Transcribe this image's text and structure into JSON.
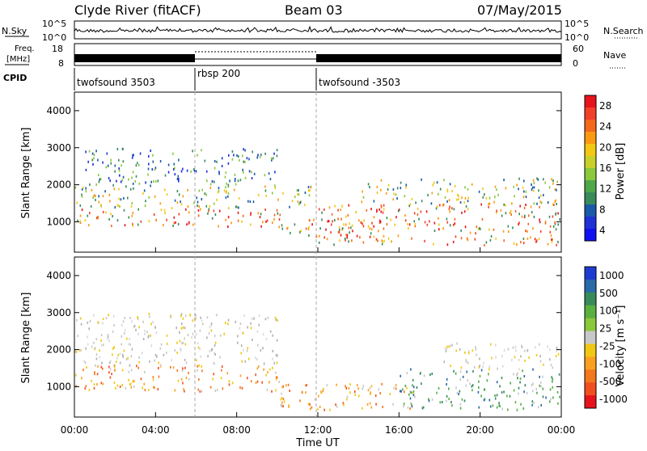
{
  "header": {
    "station": "Clyde River (fitACF)",
    "beam": "Beam 03",
    "date": "07/May/2015"
  },
  "strip_labels": {
    "nsky": "N.Sky",
    "nsky_ticks": [
      "10^5",
      "10^0"
    ],
    "nsearch": "N.Search",
    "freq": "Freq.",
    "freq_unit": "[MHz]",
    "freq_ticks": [
      "18",
      "8"
    ],
    "nave": "Nave",
    "nave_ticks": [
      "60",
      "0"
    ],
    "cpid": "CPID"
  },
  "cpid_segments": [
    {
      "label": "twofsound 3503",
      "start_hour": 0
    },
    {
      "label": "rbsp 200",
      "start_hour": 6
    },
    {
      "label": "twofsound -3503",
      "start_hour": 12
    }
  ],
  "chart_data": [
    {
      "type": "heatmap",
      "quantity": "Power",
      "ylabel": "Slant Range [km]",
      "xlabel": "",
      "xlim": [
        0,
        24
      ],
      "ylim": [
        180,
        4500
      ],
      "y_ticks": [
        1000,
        2000,
        3000,
        4000
      ],
      "x_ticks": [
        "00:00",
        "04:00",
        "08:00",
        "12:00",
        "16:00",
        "20:00",
        "00:00"
      ],
      "colorbar": {
        "label": "Power [dB]",
        "ticks": [
          "28",
          "24",
          "20",
          "16",
          "12",
          "8",
          "4"
        ],
        "colors": [
          "#e8141c",
          "#f2402a",
          "#f4691e",
          "#fb9a12",
          "#f2c814",
          "#c8d02a",
          "#8ac83c",
          "#4ea84a",
          "#3a8a5c",
          "#1a5aa8",
          "#1e32d6",
          "#1010f0"
        ]
      },
      "regions": [
        {
          "t_start": 0.0,
          "t_end": 10.3,
          "r_min": 900,
          "r_max": 1400,
          "level": "high"
        },
        {
          "t_start": 0.0,
          "t_end": 12.0,
          "r_min": 1400,
          "r_max": 2000,
          "level": "mid"
        },
        {
          "t_start": 0.5,
          "t_end": 10.0,
          "r_min": 2000,
          "r_max": 3000,
          "level": "low"
        },
        {
          "t_start": 10.0,
          "t_end": 15.5,
          "r_min": 600,
          "r_max": 1100,
          "level": "high"
        },
        {
          "t_start": 12.0,
          "t_end": 24.0,
          "r_min": 400,
          "r_max": 1500,
          "level": "high"
        },
        {
          "t_start": 14.0,
          "t_end": 24.0,
          "r_min": 1500,
          "r_max": 2200,
          "level": "mid"
        }
      ]
    },
    {
      "type": "heatmap",
      "quantity": "Velocity",
      "ylabel": "Slant Range [km]",
      "xlabel": "Time UT",
      "xlim": [
        0,
        24
      ],
      "ylim": [
        180,
        4500
      ],
      "y_ticks": [
        1000,
        2000,
        3000,
        4000
      ],
      "x_ticks": [
        "00:00",
        "04:00",
        "08:00",
        "12:00",
        "16:00",
        "20:00",
        "00:00"
      ],
      "colorbar": {
        "label": "Velocity [m s⁻¹]",
        "ticks": [
          "1000",
          "500",
          "100",
          "25",
          "-25",
          "-100",
          "-500",
          "-1000"
        ],
        "colors": [
          "#1e3cd2",
          "#2a6aa8",
          "#3a8a5c",
          "#5ab040",
          "#8ac83c",
          "#c8c8c8",
          "#f0c814",
          "#f8a020",
          "#f4781e",
          "#f05020",
          "#e8141c"
        ]
      },
      "regions": [
        {
          "t_start": 0.0,
          "t_end": 10.5,
          "r_min": 900,
          "r_max": 1600,
          "level": "orange"
        },
        {
          "t_start": 0.0,
          "t_end": 10.0,
          "r_min": 1600,
          "r_max": 3000,
          "level": "gray"
        },
        {
          "t_start": 10.0,
          "t_end": 17.0,
          "r_min": 400,
          "r_max": 1100,
          "level": "orange"
        },
        {
          "t_start": 16.0,
          "t_end": 24.0,
          "r_min": 400,
          "r_max": 1500,
          "level": "green"
        },
        {
          "t_start": 18.0,
          "t_end": 24.0,
          "r_min": 1500,
          "r_max": 2200,
          "level": "gray"
        }
      ]
    }
  ]
}
